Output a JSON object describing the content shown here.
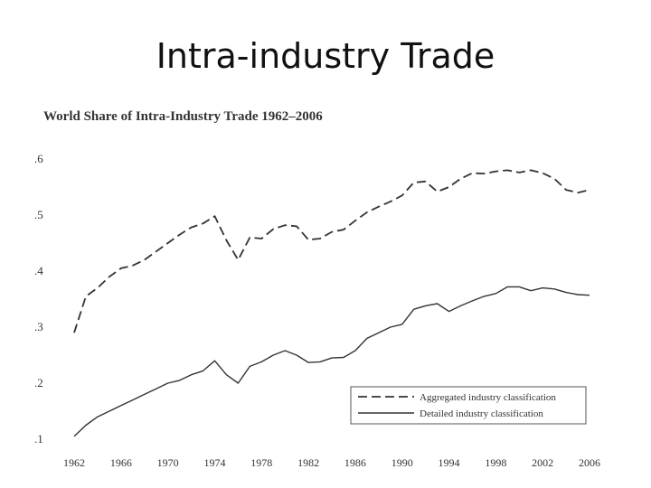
{
  "slide": {
    "title": "Intra-industry Trade"
  },
  "chart_data": {
    "type": "line",
    "title": "World Share of Intra-Industry Trade 1962–2006",
    "xlabel": "",
    "ylabel": "",
    "xlim": [
      1962,
      2006
    ],
    "ylim": [
      0.1,
      0.6
    ],
    "x_ticks": [
      1962,
      1966,
      1970,
      1974,
      1978,
      1982,
      1986,
      1990,
      1994,
      1998,
      2002,
      2006
    ],
    "x_tick_labels": [
      "1962",
      "1966",
      "1970",
      "1974",
      "1978",
      "1982",
      "1986",
      "1990",
      "1994",
      "1998",
      "2002",
      "2006"
    ],
    "y_ticks": [
      0.1,
      0.2,
      0.3,
      0.4,
      0.5,
      0.6
    ],
    "y_tick_labels": [
      ".1",
      ".2",
      ".3",
      ".4",
      ".5",
      ".6"
    ],
    "legend_position": "bottom-right",
    "series": [
      {
        "name": "Aggregated industry classification",
        "style": "dashed",
        "x": [
          1962,
          1963,
          1964,
          1965,
          1966,
          1967,
          1968,
          1969,
          1970,
          1971,
          1972,
          1973,
          1974,
          1975,
          1976,
          1977,
          1978,
          1979,
          1980,
          1981,
          1982,
          1983,
          1984,
          1985,
          1986,
          1987,
          1988,
          1989,
          1990,
          1991,
          1992,
          1993,
          1994,
          1995,
          1996,
          1997,
          1998,
          1999,
          2000,
          2001,
          2002,
          2003,
          2004,
          2005,
          2006
        ],
        "values": [
          0.29,
          0.355,
          0.37,
          0.39,
          0.405,
          0.41,
          0.42,
          0.435,
          0.45,
          0.465,
          0.478,
          0.485,
          0.498,
          0.455,
          0.42,
          0.46,
          0.458,
          0.475,
          0.482,
          0.48,
          0.456,
          0.458,
          0.47,
          0.474,
          0.49,
          0.505,
          0.515,
          0.524,
          0.535,
          0.558,
          0.56,
          0.542,
          0.55,
          0.565,
          0.575,
          0.574,
          0.578,
          0.58,
          0.576,
          0.58,
          0.575,
          0.565,
          0.545,
          0.54,
          0.545
        ]
      },
      {
        "name": "Detailed industry classification",
        "style": "solid",
        "x": [
          1962,
          1963,
          1964,
          1965,
          1966,
          1967,
          1968,
          1969,
          1970,
          1971,
          1972,
          1973,
          1974,
          1975,
          1976,
          1977,
          1978,
          1979,
          1980,
          1981,
          1982,
          1983,
          1984,
          1985,
          1986,
          1987,
          1988,
          1989,
          1990,
          1991,
          1992,
          1993,
          1994,
          1995,
          1996,
          1997,
          1998,
          1999,
          2000,
          2001,
          2002,
          2003,
          2004,
          2005,
          2006
        ],
        "values": [
          0.105,
          0.125,
          0.14,
          0.15,
          0.16,
          0.17,
          0.18,
          0.19,
          0.2,
          0.205,
          0.215,
          0.222,
          0.24,
          0.215,
          0.2,
          0.23,
          0.238,
          0.25,
          0.258,
          0.25,
          0.237,
          0.238,
          0.245,
          0.246,
          0.258,
          0.28,
          0.29,
          0.3,
          0.305,
          0.332,
          0.338,
          0.342,
          0.328,
          0.338,
          0.347,
          0.355,
          0.36,
          0.372,
          0.372,
          0.365,
          0.37,
          0.368,
          0.362,
          0.358,
          0.357
        ]
      }
    ]
  }
}
